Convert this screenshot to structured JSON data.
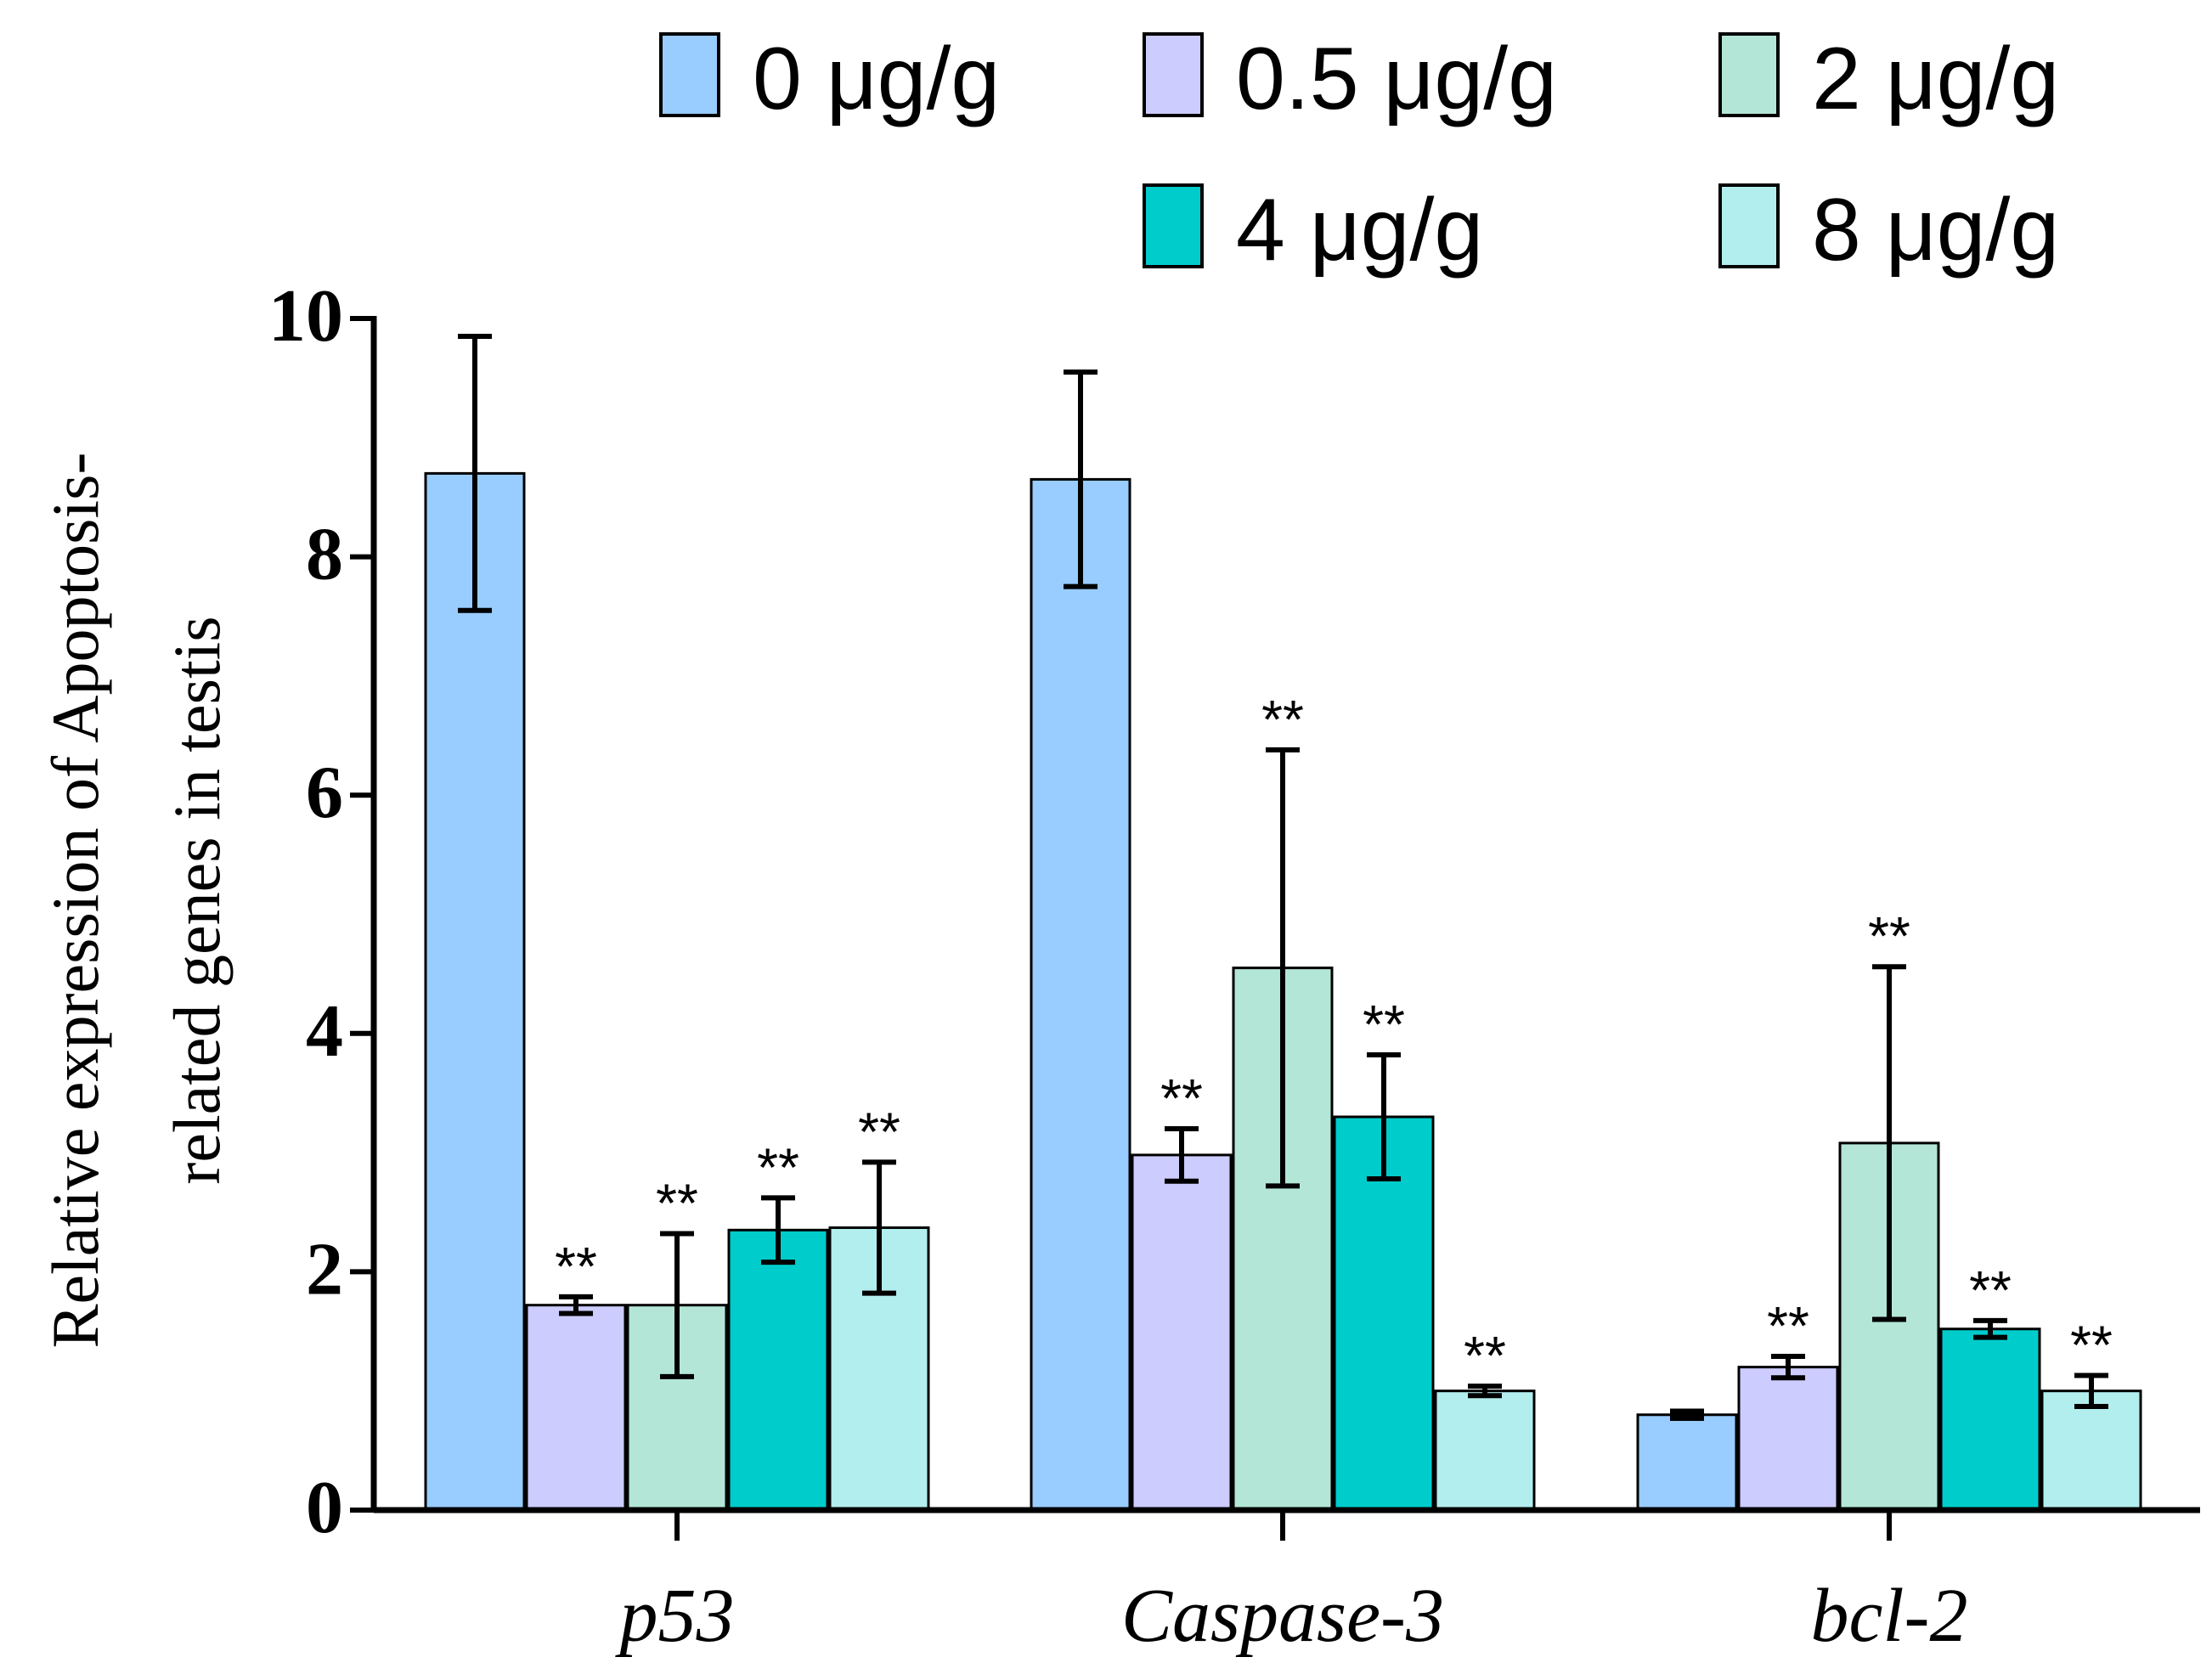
{
  "chart_data": {
    "type": "bar",
    "title": "",
    "xlabel": "",
    "ylabel_lines": [
      "Relative expression of Apoptosis-",
      "related genes in testis"
    ],
    "ylim": [
      0,
      10
    ],
    "yticks": [
      "0",
      "2",
      "4",
      "6",
      "8",
      "10"
    ],
    "categories": [
      "p53",
      "Caspase-3",
      "bcl-2"
    ],
    "legend_position": "top-right",
    "significance_marker": "**",
    "series": [
      {
        "name": "0 μg/g",
        "color": "#99CCFF",
        "values": [
          8.7,
          8.65,
          0.8
        ],
        "errors": [
          1.15,
          0.9,
          0.03
        ],
        "significant": [
          false,
          false,
          false
        ]
      },
      {
        "name": "0.5 μg/g",
        "color": "#CCCCFF",
        "values": [
          1.72,
          2.98,
          1.2
        ],
        "errors": [
          0.07,
          0.22,
          0.09
        ],
        "significant": [
          true,
          true,
          true
        ]
      },
      {
        "name": "2 μg/g",
        "color": "#B3E6D6",
        "values": [
          1.72,
          4.55,
          3.08
        ],
        "errors": [
          0.6,
          1.83,
          1.48
        ],
        "significant": [
          true,
          true,
          true
        ]
      },
      {
        "name": "4 μg/g",
        "color": "#00CCCC",
        "values": [
          2.35,
          3.3,
          1.52
        ],
        "errors": [
          0.27,
          0.52,
          0.07
        ],
        "significant": [
          true,
          true,
          true
        ]
      },
      {
        "name": "8 μg/g",
        "color": "#B3EEEE",
        "values": [
          2.37,
          1.0,
          1.0
        ],
        "errors": [
          0.55,
          0.04,
          0.13
        ],
        "significant": [
          true,
          true,
          true
        ]
      }
    ]
  }
}
